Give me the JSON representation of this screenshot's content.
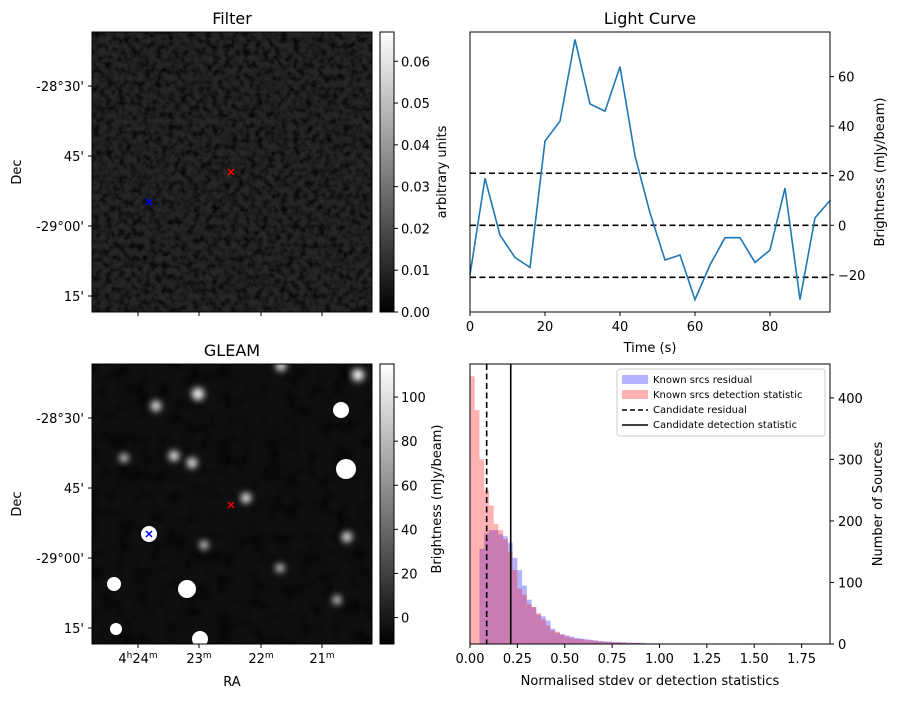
{
  "chart_data": [
    {
      "type": "heatmap",
      "title": "Filter",
      "ylabel": "Dec",
      "yticks": [
        "-28°30'",
        "45'",
        "-29°00'",
        "15'"
      ],
      "colorbar": {
        "label": "arbitrary units",
        "range": [
          0,
          0.067
        ],
        "ticks": [
          "0.00",
          "0.01",
          "0.02",
          "0.03",
          "0.04",
          "0.05",
          "0.06"
        ],
        "cmap": "gray"
      },
      "markers": [
        {
          "label": "candidate",
          "symbol": "x",
          "color": "#ff0000"
        },
        {
          "label": "reference",
          "symbol": "x",
          "color": "#0000ff"
        }
      ]
    },
    {
      "type": "line",
      "title": "Light Curve",
      "xlabel": "Time (s)",
      "ylabel": "Brightness (mJy/beam)",
      "xlim": [
        0,
        96
      ],
      "ylim": [
        -35,
        78
      ],
      "xticks": [
        "0",
        "20",
        "40",
        "60",
        "80"
      ],
      "yticks": [
        "−20",
        "0",
        "20",
        "40",
        "60"
      ],
      "series": [
        {
          "color": "#1f77b4",
          "x": [
            0,
            4,
            8,
            12,
            16,
            20,
            24,
            28,
            32,
            36,
            40,
            44,
            48,
            52,
            56,
            60,
            64,
            68,
            72,
            76,
            80,
            84,
            88,
            92,
            96
          ],
          "y": [
            -20,
            19,
            -4,
            -13,
            -17,
            34,
            42,
            75,
            49,
            46,
            64,
            28,
            5,
            -14,
            -12,
            -30,
            -16,
            -5,
            -5,
            -15,
            -10,
            15,
            -30,
            3,
            10
          ]
        }
      ],
      "hlines": [
        {
          "y": 21,
          "style": "dashed",
          "color": "#000000"
        },
        {
          "y": 0,
          "style": "dashed",
          "color": "#000000"
        },
        {
          "y": -21,
          "style": "dashed",
          "color": "#000000"
        }
      ]
    },
    {
      "type": "heatmap",
      "title": "GLEAM",
      "xlabel": "RA",
      "ylabel": "Dec",
      "yticks": [
        "-28°30'",
        "45'",
        "-29°00'",
        "15'"
      ],
      "xticks": [
        "4h24m",
        "23m",
        "22m",
        "21m"
      ],
      "colorbar": {
        "label": "Brightness (mJy/beam)",
        "range": [
          -12,
          115
        ],
        "ticks": [
          "0",
          "20",
          "40",
          "60",
          "80",
          "100"
        ],
        "cmap": "gray"
      },
      "markers": [
        {
          "label": "candidate",
          "symbol": "x",
          "color": "#ff0000"
        },
        {
          "label": "reference",
          "symbol": "x",
          "color": "#0000ff"
        }
      ]
    },
    {
      "type": "bar",
      "subtype": "histogram",
      "xlabel": "Normalised stdev or detection statistics",
      "ylabel": "Number of Sources",
      "xlim": [
        0,
        1.9
      ],
      "ylim": [
        0,
        455
      ],
      "xticks": [
        "0.00",
        "0.25",
        "0.50",
        "0.75",
        "1.00",
        "1.25",
        "1.50",
        "1.75"
      ],
      "yticks": [
        "0",
        "100",
        "200",
        "300",
        "400"
      ],
      "bin_width": 0.025,
      "series": [
        {
          "name": "Known srcs residual",
          "color": "#0000ff",
          "alpha": 0.3,
          "bin_starts": [
            0.0,
            0.025,
            0.05,
            0.075,
            0.1,
            0.125,
            0.15,
            0.175,
            0.2,
            0.225,
            0.25,
            0.275,
            0.3,
            0.325,
            0.35,
            0.375,
            0.4,
            0.425,
            0.45,
            0.475,
            0.5,
            0.525,
            0.55,
            0.575,
            0.6,
            0.625,
            0.65,
            0.675,
            0.7,
            0.725,
            0.75,
            0.775,
            0.8,
            0.825,
            0.85,
            0.875,
            0.9,
            0.925,
            0.95,
            0.975,
            1.0,
            1.05,
            1.1,
            1.15,
            1.2,
            1.3,
            1.45,
            1.6,
            1.75
          ],
          "values": [
            0,
            0,
            155,
            180,
            185,
            185,
            178,
            175,
            165,
            140,
            120,
            95,
            72,
            60,
            48,
            45,
            38,
            25,
            18,
            16,
            14,
            12,
            10,
            9,
            8,
            7,
            6,
            5,
            4,
            4,
            3,
            3,
            3,
            2,
            2,
            2,
            2,
            1,
            1,
            1,
            1,
            1,
            1,
            1,
            1,
            1,
            1,
            1,
            1
          ]
        },
        {
          "name": "Known srcs detection statistic",
          "color": "#ff0000",
          "alpha": 0.3,
          "bin_starts": [
            0.0,
            0.025,
            0.05,
            0.075,
            0.1,
            0.125,
            0.15,
            0.175,
            0.2,
            0.225,
            0.25,
            0.275,
            0.3,
            0.325,
            0.35,
            0.375,
            0.4,
            0.425,
            0.45,
            0.475,
            0.5,
            0.525,
            0.55,
            0.575,
            0.6,
            0.625,
            0.65,
            0.675,
            0.7,
            0.725,
            0.75,
            0.775,
            0.8,
            0.825,
            0.85,
            0.875
          ],
          "values": [
            435,
            380,
            300,
            250,
            225,
            195,
            185,
            170,
            150,
            120,
            90,
            80,
            65,
            60,
            50,
            40,
            30,
            22,
            20,
            15,
            12,
            10,
            8,
            8,
            6,
            6,
            5,
            4,
            4,
            3,
            3,
            3,
            2,
            2,
            2,
            2
          ]
        }
      ],
      "vlines": [
        {
          "name": "Candidate residual",
          "x": 0.088,
          "style": "dashed",
          "color": "#000000"
        },
        {
          "name": "Candidate detection statistic",
          "x": 0.215,
          "style": "solid",
          "color": "#000000"
        }
      ],
      "legend": "top-right"
    }
  ]
}
